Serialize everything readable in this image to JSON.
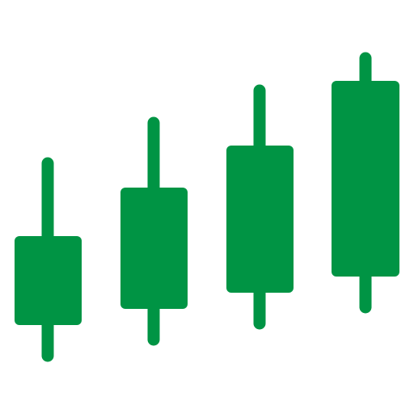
{
  "icon": {
    "name": "candlestick-chart-icon",
    "color": "#009444",
    "background": "#ffffff",
    "candles": [
      {
        "name": "candle-1"
      },
      {
        "name": "candle-2"
      },
      {
        "name": "candle-3"
      },
      {
        "name": "candle-4"
      }
    ]
  }
}
